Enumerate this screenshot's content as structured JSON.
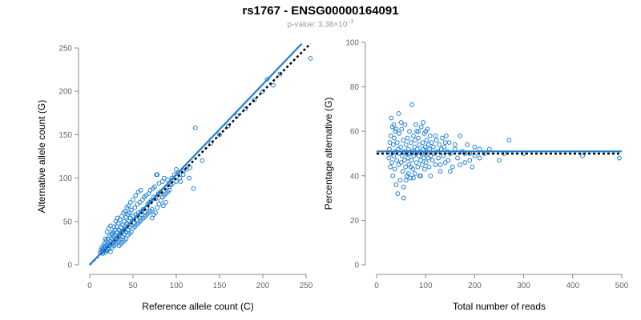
{
  "title": {
    "main": "rs1767 - ENSG00000164091",
    "pvalue_prefix": "p-value: 3.38×10",
    "pvalue_exponent": "−3"
  },
  "colors": {
    "point": "#1f7fd4",
    "fit_line": "#1f7fd4",
    "reference_line": "#000000",
    "axis": "#888888"
  },
  "chart_data": [
    {
      "type": "scatter",
      "title": "",
      "xlabel": "Reference allele count (C)",
      "ylabel": "Alternative allele count (G)",
      "xlim": [
        0,
        250
      ],
      "ylim": [
        0,
        250
      ],
      "xticks": [
        0,
        50,
        100,
        150,
        200,
        250
      ],
      "yticks": [
        0,
        50,
        100,
        150,
        200,
        250
      ],
      "fit_line": {
        "x": [
          0,
          245
        ],
        "y": [
          0,
          255
        ]
      },
      "reference_line": {
        "x": [
          0,
          255
        ],
        "y": [
          0,
          255
        ],
        "style": "dotted"
      },
      "points": [
        [
          12,
          14
        ],
        [
          13,
          17
        ],
        [
          14,
          15
        ],
        [
          14,
          20
        ],
        [
          15,
          13
        ],
        [
          15,
          18
        ],
        [
          16,
          22
        ],
        [
          16,
          16
        ],
        [
          17,
          19
        ],
        [
          17,
          25
        ],
        [
          18,
          14
        ],
        [
          18,
          21
        ],
        [
          19,
          28
        ],
        [
          19,
          17
        ],
        [
          20,
          23
        ],
        [
          20,
          16
        ],
        [
          21,
          30
        ],
        [
          21,
          20
        ],
        [
          22,
          25
        ],
        [
          22,
          18
        ],
        [
          23,
          33
        ],
        [
          23,
          22
        ],
        [
          24,
          27
        ],
        [
          24,
          15
        ],
        [
          25,
          35
        ],
        [
          25,
          24
        ],
        [
          26,
          20
        ],
        [
          26,
          30
        ],
        [
          27,
          38
        ],
        [
          27,
          26
        ],
        [
          28,
          22
        ],
        [
          28,
          32
        ],
        [
          29,
          40
        ],
        [
          29,
          28
        ],
        [
          30,
          24
        ],
        [
          30,
          34
        ],
        [
          31,
          44
        ],
        [
          31,
          30
        ],
        [
          32,
          26
        ],
        [
          32,
          37
        ],
        [
          33,
          48
        ],
        [
          33,
          32
        ],
        [
          34,
          28
        ],
        [
          34,
          40
        ],
        [
          35,
          52
        ],
        [
          35,
          36
        ],
        [
          36,
          30
        ],
        [
          36,
          43
        ],
        [
          37,
          56
        ],
        [
          37,
          38
        ],
        [
          38,
          32
        ],
        [
          38,
          46
        ],
        [
          39,
          60
        ],
        [
          39,
          40
        ],
        [
          40,
          35
        ],
        [
          40,
          50
        ],
        [
          41,
          62
        ],
        [
          41,
          44
        ],
        [
          42,
          38
        ],
        [
          42,
          55
        ],
        [
          43,
          66
        ],
        [
          43,
          48
        ],
        [
          44,
          40
        ],
        [
          44,
          58
        ],
        [
          45,
          68
        ],
        [
          45,
          50
        ],
        [
          46,
          44
        ],
        [
          46,
          60
        ],
        [
          47,
          72
        ],
        [
          47,
          54
        ],
        [
          48,
          46
        ],
        [
          48,
          63
        ],
        [
          50,
          75
        ],
        [
          50,
          56
        ],
        [
          51,
          48
        ],
        [
          52,
          66
        ],
        [
          53,
          80
        ],
        [
          53,
          58
        ],
        [
          54,
          52
        ],
        [
          55,
          70
        ],
        [
          56,
          84
        ],
        [
          56,
          60
        ],
        [
          57,
          55
        ],
        [
          58,
          72
        ],
        [
          59,
          86
        ],
        [
          60,
          62
        ],
        [
          60,
          58
        ],
        [
          61,
          75
        ],
        [
          62,
          64
        ],
        [
          63,
          78
        ],
        [
          64,
          60
        ],
        [
          65,
          80
        ],
        [
          66,
          66
        ],
        [
          67,
          70
        ],
        [
          68,
          82
        ],
        [
          69,
          72
        ],
        [
          70,
          86
        ],
        [
          71,
          74
        ],
        [
          72,
          64
        ],
        [
          73,
          88
        ],
        [
          74,
          78
        ],
        [
          75,
          90
        ],
        [
          76,
          76
        ],
        [
          77,
          104
        ],
        [
          78,
          104
        ],
        [
          79,
          82
        ],
        [
          80,
          94
        ],
        [
          82,
          84
        ],
        [
          84,
          96
        ],
        [
          85,
          68
        ],
        [
          86,
          100
        ],
        [
          88,
          72
        ],
        [
          90,
          98
        ],
        [
          92,
          86
        ],
        [
          95,
          100
        ],
        [
          98,
          104
        ],
        [
          100,
          110
        ],
        [
          102,
          106
        ],
        [
          105,
          96
        ],
        [
          108,
          108
        ],
        [
          110,
          112
        ],
        [
          115,
          100
        ],
        [
          120,
          88
        ],
        [
          122,
          158
        ],
        [
          130,
          120
        ],
        [
          140,
          140
        ],
        [
          150,
          150
        ],
        [
          160,
          160
        ],
        [
          170,
          172
        ],
        [
          180,
          180
        ],
        [
          190,
          190
        ],
        [
          200,
          200
        ],
        [
          205,
          214
        ],
        [
          212,
          207
        ],
        [
          220,
          220
        ],
        [
          255,
          238
        ],
        [
          18,
          30
        ],
        [
          20,
          38
        ],
        [
          22,
          42
        ],
        [
          24,
          45
        ],
        [
          26,
          36
        ],
        [
          28,
          44
        ],
        [
          30,
          50
        ],
        [
          32,
          54
        ],
        [
          34,
          22
        ],
        [
          36,
          24
        ],
        [
          38,
          26
        ],
        [
          40,
          28
        ],
        [
          42,
          30
        ],
        [
          44,
          34
        ],
        [
          46,
          36
        ],
        [
          48,
          38
        ],
        [
          50,
          42
        ],
        [
          52,
          44
        ],
        [
          54,
          46
        ],
        [
          56,
          48
        ],
        [
          58,
          50
        ],
        [
          60,
          52
        ],
        [
          62,
          54
        ],
        [
          64,
          56
        ],
        [
          66,
          58
        ],
        [
          68,
          60
        ],
        [
          70,
          62
        ],
        [
          72,
          54
        ],
        [
          74,
          58
        ],
        [
          76,
          60
        ],
        [
          78,
          66
        ],
        [
          80,
          70
        ],
        [
          82,
          74
        ],
        [
          84,
          78
        ],
        [
          86,
          80
        ],
        [
          88,
          82
        ],
        [
          90,
          84
        ],
        [
          92,
          90
        ],
        [
          94,
          92
        ],
        [
          96,
          94
        ],
        [
          100,
          96
        ],
        [
          104,
          100
        ],
        [
          108,
          104
        ],
        [
          112,
          110
        ],
        [
          116,
          112
        ]
      ]
    },
    {
      "type": "scatter",
      "title": "",
      "xlabel": "Total number of reads",
      "ylabel": "Percentage alternative (G)",
      "xlim": [
        0,
        500
      ],
      "ylim": [
        0,
        100
      ],
      "xticks": [
        0,
        100,
        200,
        300,
        400,
        500
      ],
      "yticks": [
        0,
        20,
        40,
        60,
        80,
        100
      ],
      "fit_line": {
        "x": [
          0,
          500
        ],
        "y": [
          51,
          51
        ]
      },
      "reference_line": {
        "x": [
          0,
          500
        ],
        "y": [
          50,
          50
        ],
        "style": "dotted"
      },
      "points": [
        [
          25,
          48
        ],
        [
          26,
          52
        ],
        [
          27,
          55
        ],
        [
          28,
          44
        ],
        [
          29,
          58
        ],
        [
          30,
          50
        ],
        [
          31,
          46
        ],
        [
          32,
          62
        ],
        [
          33,
          40
        ],
        [
          34,
          54
        ],
        [
          35,
          49
        ],
        [
          36,
          57
        ],
        [
          37,
          43
        ],
        [
          38,
          60
        ],
        [
          39,
          51
        ],
        [
          40,
          36
        ],
        [
          41,
          47
        ],
        [
          42,
          55
        ],
        [
          43,
          32
        ],
        [
          44,
          52
        ],
        [
          45,
          45
        ],
        [
          46,
          59
        ],
        [
          47,
          50
        ],
        [
          48,
          38
        ],
        [
          49,
          53
        ],
        [
          50,
          46
        ],
        [
          51,
          61
        ],
        [
          52,
          49
        ],
        [
          53,
          42
        ],
        [
          54,
          56
        ],
        [
          55,
          30
        ],
        [
          56,
          51
        ],
        [
          57,
          47
        ],
        [
          58,
          63
        ],
        [
          59,
          44
        ],
        [
          60,
          54
        ],
        [
          61,
          50
        ],
        [
          62,
          40
        ],
        [
          63,
          57
        ],
        [
          64,
          48
        ],
        [
          65,
          52
        ],
        [
          66,
          45
        ],
        [
          67,
          60
        ],
        [
          68,
          50
        ],
        [
          69,
          39
        ],
        [
          70,
          55
        ],
        [
          71,
          47
        ],
        [
          72,
          72
        ],
        [
          73,
          51
        ],
        [
          74,
          43
        ],
        [
          75,
          58
        ],
        [
          76,
          49
        ],
        [
          77,
          53
        ],
        [
          78,
          41
        ],
        [
          79,
          56
        ],
        [
          80,
          50
        ],
        [
          81,
          46
        ],
        [
          82,
          60
        ],
        [
          83,
          52
        ],
        [
          84,
          44
        ],
        [
          85,
          57
        ],
        [
          86,
          49
        ],
        [
          87,
          54
        ],
        [
          88,
          40
        ],
        [
          89,
          51
        ],
        [
          90,
          47
        ],
        [
          91,
          62
        ],
        [
          92,
          50
        ],
        [
          93,
          45
        ],
        [
          94,
          55
        ],
        [
          95,
          52
        ],
        [
          96,
          48
        ],
        [
          97,
          59
        ],
        [
          98,
          43
        ],
        [
          99,
          53
        ],
        [
          100,
          50
        ],
        [
          101,
          46
        ],
        [
          102,
          56
        ],
        [
          103,
          51
        ],
        [
          104,
          61
        ],
        [
          105,
          48
        ],
        [
          106,
          54
        ],
        [
          107,
          44
        ],
        [
          108,
          52
        ],
        [
          109,
          58
        ],
        [
          110,
          49
        ],
        [
          112,
          55
        ],
        [
          114,
          47
        ],
        [
          116,
          53
        ],
        [
          118,
          50
        ],
        [
          120,
          45
        ],
        [
          122,
          56
        ],
        [
          124,
          51
        ],
        [
          126,
          48
        ],
        [
          128,
          54
        ],
        [
          130,
          42
        ],
        [
          132,
          52
        ],
        [
          134,
          57
        ],
        [
          136,
          49
        ],
        [
          138,
          53
        ],
        [
          140,
          46
        ],
        [
          142,
          58
        ],
        [
          144,
          51
        ],
        [
          146,
          47
        ],
        [
          148,
          55
        ],
        [
          150,
          50
        ],
        [
          155,
          44
        ],
        [
          160,
          52
        ],
        [
          165,
          48
        ],
        [
          170,
          58
        ],
        [
          175,
          51
        ],
        [
          180,
          46
        ],
        [
          185,
          54
        ],
        [
          190,
          50
        ],
        [
          195,
          44
        ],
        [
          200,
          49
        ],
        [
          210,
          52
        ],
        [
          220,
          50
        ],
        [
          250,
          47
        ],
        [
          270,
          56
        ],
        [
          300,
          50
        ],
        [
          420,
          49
        ],
        [
          495,
          48
        ],
        [
          30,
          66
        ],
        [
          35,
          63
        ],
        [
          40,
          61
        ],
        [
          45,
          68
        ],
        [
          50,
          64
        ],
        [
          55,
          35
        ],
        [
          60,
          38
        ],
        [
          65,
          41
        ],
        [
          70,
          44
        ],
        [
          75,
          39
        ],
        [
          80,
          63
        ],
        [
          85,
          60
        ],
        [
          90,
          40
        ],
        [
          95,
          64
        ],
        [
          100,
          60
        ],
        [
          110,
          40
        ],
        [
          120,
          58
        ],
        [
          130,
          45
        ],
        [
          140,
          55
        ],
        [
          150,
          42
        ],
        [
          160,
          54
        ],
        [
          170,
          45
        ],
        [
          180,
          50
        ],
        [
          190,
          47
        ],
        [
          200,
          53
        ],
        [
          210,
          48
        ],
        [
          230,
          52
        ],
        [
          260,
          50
        ]
      ]
    }
  ]
}
